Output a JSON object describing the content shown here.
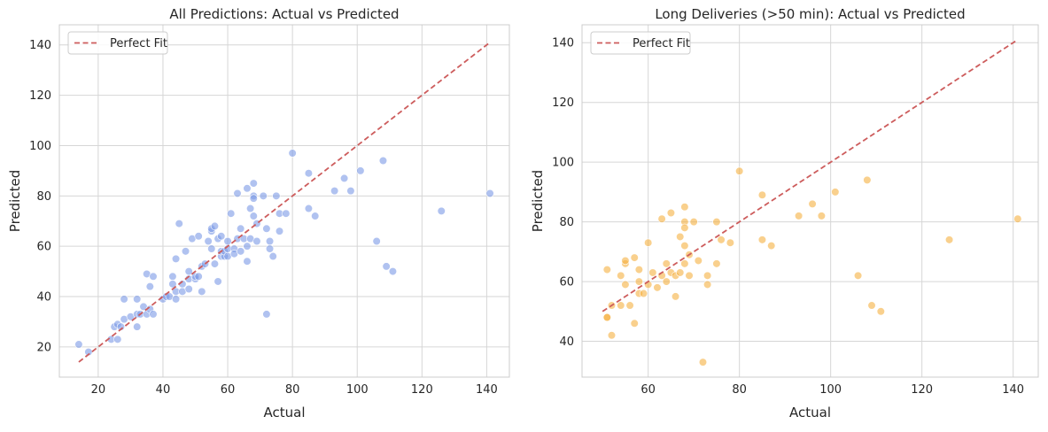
{
  "chart_data": [
    {
      "type": "scatter",
      "title": "All Predictions: Actual vs Predicted",
      "xlabel": "Actual",
      "ylabel": "Predicted",
      "xlim": [
        8,
        147
      ],
      "ylim": [
        8,
        148
      ],
      "xticks": [
        20,
        40,
        60,
        80,
        100,
        120,
        140
      ],
      "yticks": [
        20,
        40,
        60,
        80,
        100,
        120,
        140
      ],
      "grid": true,
      "legend_position": "top-left",
      "point_color": "#7b9ae6",
      "perfect_fit": {
        "label": "Perfect Fit",
        "from": [
          14,
          14
        ],
        "to": [
          141,
          141
        ],
        "color": "#cd5c5c"
      },
      "points": [
        [
          14,
          21
        ],
        [
          17,
          18
        ],
        [
          24,
          23
        ],
        [
          26,
          23
        ],
        [
          25,
          28
        ],
        [
          26,
          29
        ],
        [
          27,
          28
        ],
        [
          28,
          31
        ],
        [
          28,
          39
        ],
        [
          30,
          32
        ],
        [
          32,
          28
        ],
        [
          32,
          33
        ],
        [
          32,
          39
        ],
        [
          33,
          33
        ],
        [
          34,
          36
        ],
        [
          35,
          33
        ],
        [
          35,
          49
        ],
        [
          36,
          44
        ],
        [
          36,
          35
        ],
        [
          37,
          33
        ],
        [
          37,
          48
        ],
        [
          40,
          39
        ],
        [
          41,
          40
        ],
        [
          42,
          40
        ],
        [
          43,
          48
        ],
        [
          43,
          45
        ],
        [
          44,
          39
        ],
        [
          44,
          42
        ],
        [
          44,
          55
        ],
        [
          45,
          69
        ],
        [
          46,
          45
        ],
        [
          46,
          42
        ],
        [
          47,
          58
        ],
        [
          48,
          43
        ],
        [
          48,
          47
        ],
        [
          48,
          50
        ],
        [
          49,
          63
        ],
        [
          50,
          47
        ],
        [
          50,
          48
        ],
        [
          51,
          64
        ],
        [
          51,
          48
        ],
        [
          52,
          42
        ],
        [
          52,
          52
        ],
        [
          53,
          53
        ],
        [
          54,
          62
        ],
        [
          55,
          59
        ],
        [
          55,
          66
        ],
        [
          55,
          67
        ],
        [
          56,
          53
        ],
        [
          56,
          68
        ],
        [
          57,
          63
        ],
        [
          57,
          46
        ],
        [
          58,
          56
        ],
        [
          58,
          58
        ],
        [
          58,
          64
        ],
        [
          59,
          56
        ],
        [
          59,
          58
        ],
        [
          60,
          56
        ],
        [
          60,
          59
        ],
        [
          60,
          62
        ],
        [
          61,
          73
        ],
        [
          62,
          59
        ],
        [
          62,
          57
        ],
        [
          63,
          81
        ],
        [
          63,
          63
        ],
        [
          64,
          67
        ],
        [
          64,
          58
        ],
        [
          65,
          63
        ],
        [
          66,
          60
        ],
        [
          66,
          54
        ],
        [
          66,
          83
        ],
        [
          67,
          63
        ],
        [
          67,
          75
        ],
        [
          68,
          85
        ],
        [
          68,
          72
        ],
        [
          68,
          80
        ],
        [
          68,
          79
        ],
        [
          69,
          62
        ],
        [
          69,
          69
        ],
        [
          71,
          80
        ],
        [
          72,
          67
        ],
        [
          72,
          33
        ],
        [
          73,
          59
        ],
        [
          73,
          62
        ],
        [
          74,
          56
        ],
        [
          75,
          80
        ],
        [
          76,
          66
        ],
        [
          76,
          73
        ],
        [
          78,
          73
        ],
        [
          80,
          97
        ],
        [
          85,
          89
        ],
        [
          85,
          75
        ],
        [
          87,
          72
        ],
        [
          93,
          82
        ],
        [
          96,
          87
        ],
        [
          98,
          82
        ],
        [
          101,
          90
        ],
        [
          106,
          62
        ],
        [
          108,
          94
        ],
        [
          109,
          52
        ],
        [
          111,
          50
        ],
        [
          126,
          74
        ],
        [
          141,
          81
        ]
      ]
    },
    {
      "type": "scatter",
      "title": "Long Deliveries (>50 min): Actual vs Predicted",
      "xlabel": "Actual",
      "ylabel": "Predicted",
      "xlim": [
        45.5,
        145.5
      ],
      "ylim": [
        28,
        146
      ],
      "xticks": [
        60,
        80,
        100,
        120,
        140
      ],
      "yticks": [
        40,
        60,
        80,
        100,
        120,
        140
      ],
      "grid": true,
      "legend_position": "top-left",
      "point_color": "#f5b041",
      "perfect_fit": {
        "label": "Perfect Fit",
        "from": [
          50,
          50
        ],
        "to": [
          141,
          141
        ],
        "color": "#cd5c5c"
      },
      "points": [
        [
          51,
          64
        ],
        [
          51,
          48
        ],
        [
          51,
          48
        ],
        [
          52,
          42
        ],
        [
          52,
          52
        ],
        [
          54,
          52
        ],
        [
          54,
          62
        ],
        [
          55,
          59
        ],
        [
          55,
          66
        ],
        [
          55,
          67
        ],
        [
          56,
          52
        ],
        [
          57,
          68
        ],
        [
          57,
          46
        ],
        [
          58,
          60
        ],
        [
          58,
          56
        ],
        [
          58,
          64
        ],
        [
          59,
          56
        ],
        [
          60,
          73
        ],
        [
          60,
          59
        ],
        [
          61,
          63
        ],
        [
          62,
          58
        ],
        [
          63,
          81
        ],
        [
          63,
          62
        ],
        [
          64,
          66
        ],
        [
          64,
          60
        ],
        [
          65,
          63
        ],
        [
          65,
          83
        ],
        [
          66,
          55
        ],
        [
          66,
          62
        ],
        [
          67,
          75
        ],
        [
          67,
          63
        ],
        [
          68,
          85
        ],
        [
          68,
          80
        ],
        [
          68,
          78
        ],
        [
          68,
          72
        ],
        [
          68,
          66
        ],
        [
          69,
          69
        ],
        [
          69,
          62
        ],
        [
          70,
          80
        ],
        [
          71,
          67
        ],
        [
          72,
          33
        ],
        [
          73,
          62
        ],
        [
          73,
          59
        ],
        [
          75,
          80
        ],
        [
          75,
          66
        ],
        [
          76,
          74
        ],
        [
          78,
          73
        ],
        [
          80,
          97
        ],
        [
          85,
          89
        ],
        [
          85,
          74
        ],
        [
          87,
          72
        ],
        [
          93,
          82
        ],
        [
          96,
          86
        ],
        [
          98,
          82
        ],
        [
          101,
          90
        ],
        [
          106,
          62
        ],
        [
          108,
          94
        ],
        [
          109,
          52
        ],
        [
          111,
          50
        ],
        [
          126,
          74
        ],
        [
          141,
          81
        ]
      ]
    }
  ]
}
